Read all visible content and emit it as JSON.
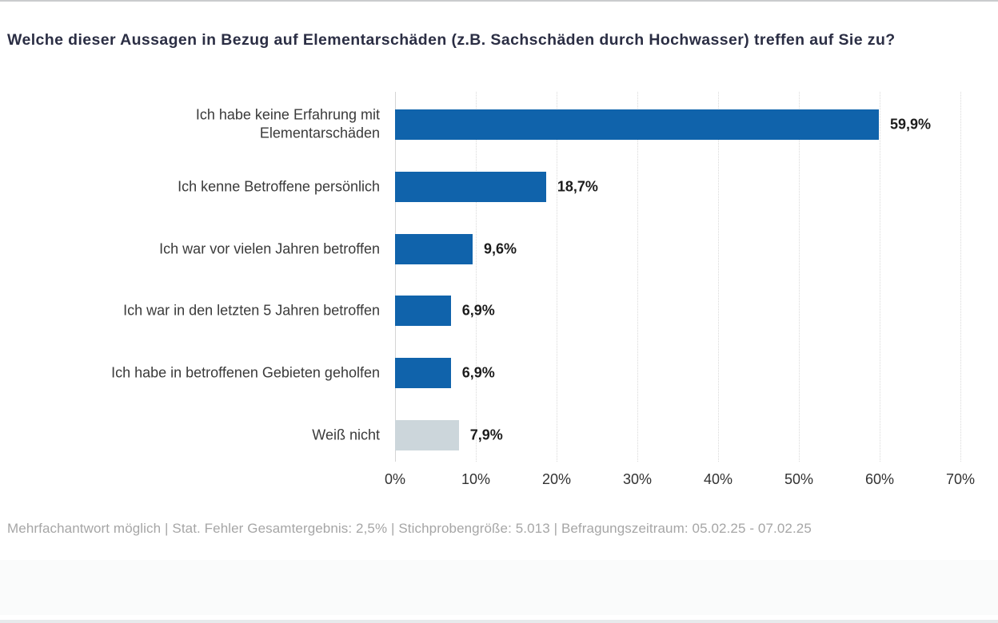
{
  "chart_data": {
    "type": "bar",
    "orientation": "horizontal",
    "title": "Welche dieser Aussagen in Bezug auf Elementarschäden (z.B. Sachschäden durch Hochwasser) treffen auf Sie zu?",
    "categories": [
      "Ich habe keine Erfahrung mit\nElementarschäden",
      "Ich kenne Betroffene persönlich",
      "Ich war vor vielen Jahren betroffen",
      "Ich war in den letzten 5 Jahren betroffen",
      "Ich habe in betroffenen Gebieten geholfen",
      "Weiß nicht"
    ],
    "values": [
      59.9,
      18.7,
      9.6,
      6.9,
      6.9,
      7.9
    ],
    "value_labels": [
      "59,9%",
      "18,7%",
      "9,6%",
      "6,9%",
      "6,9%",
      "7,9%"
    ],
    "bar_colors": [
      "#1063ab",
      "#1063ab",
      "#1063ab",
      "#1063ab",
      "#1063ab",
      "#ccd6db"
    ],
    "xlabel": "",
    "ylabel": "",
    "xlim": [
      0,
      70
    ],
    "x_ticks": [
      "0%",
      "10%",
      "20%",
      "30%",
      "40%",
      "50%",
      "60%",
      "70%"
    ],
    "grid": "vertical-dotted",
    "legend": null
  },
  "footer": {
    "text": "Mehrfachantwort möglich | Stat. Fehler Gesamtergebnis: 2,5% | Stichprobengröße: 5.013 | Befragungszeitraum: 05.02.25 - 07.02.25"
  },
  "colors": {
    "bar_primary": "#1063ab",
    "bar_neutral": "#ccd6db",
    "title_text": "#2b2e44",
    "footer_text": "#a6a6a6",
    "gridline": "#d9d9d9"
  }
}
